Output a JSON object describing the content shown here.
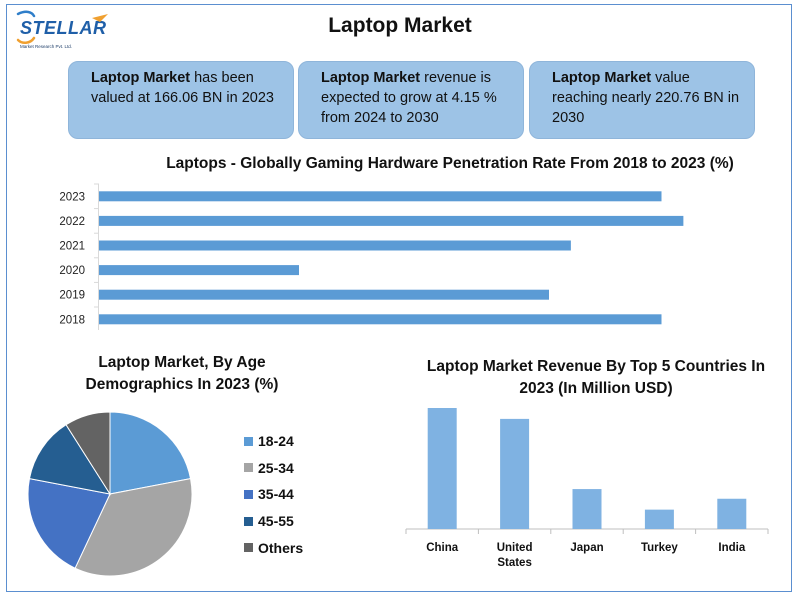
{
  "logo": {
    "name": "STELLAR",
    "tagline": "Market Research Pvt. Ltd."
  },
  "page_title": "Laptop Market",
  "stats": [
    {
      "bold": "Laptop Market",
      "text": " has been valued at 166.06 BN in 2023"
    },
    {
      "bold": "Laptop Market",
      "text": " revenue is expected to grow at 4.15 % from 2024 to 2030"
    },
    {
      "bold": "Laptop Market",
      "text": " value reaching nearly 220.76 BN in 2030"
    }
  ],
  "colors": {
    "bar": "#5b9bd5",
    "stat_box": "#9dc3e6",
    "country_bar": "#7fb2e2",
    "frame": "#5b8fd0"
  },
  "chart_data": [
    {
      "type": "bar",
      "orientation": "horizontal",
      "title": "Laptops - Globally Gaming Hardware Penetration Rate From 2018 to 2023 (%)",
      "categories": [
        "2023",
        "2022",
        "2021",
        "2020",
        "2019",
        "2018"
      ],
      "values": [
        90,
        93.5,
        75.5,
        32,
        72,
        90
      ],
      "xlim": [
        0,
        100
      ],
      "grid": false
    },
    {
      "type": "pie",
      "title": "Laptop Market, By Age Demographics In 2023 (%)",
      "categories": [
        "18-24",
        "25-34",
        "35-44",
        "45-55",
        "Others"
      ],
      "values": [
        22,
        35,
        21,
        13,
        9
      ],
      "colors": [
        "#5b9bd5",
        "#a5a5a5",
        "#4472c4",
        "#255e91",
        "#636363"
      ],
      "legend": "right"
    },
    {
      "type": "bar",
      "title": "Laptop Market Revenue By Top 5 Countries In 2023 (In Million USD)",
      "categories": [
        "China",
        "United States",
        "Japan",
        "Turkey",
        "India"
      ],
      "values": [
        100,
        91,
        33,
        16,
        25
      ],
      "ylim": [
        0,
        110
      ],
      "grid": false
    }
  ]
}
